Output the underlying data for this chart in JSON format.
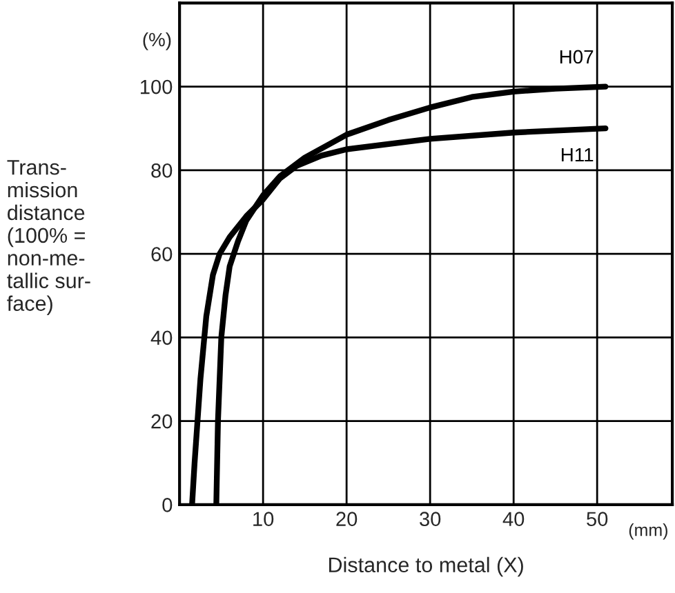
{
  "chart_data": {
    "type": "line",
    "xlabel": "Distance to metal (X)",
    "ylabel": "Trans-\nmission\ndistance\n(100% =\nnon-me-\ntallic sur-\nface)",
    "annotations": [
      "(%)",
      "(mm)"
    ],
    "xlim": [
      0,
      59
    ],
    "ylim": [
      0,
      120
    ],
    "xticks": [
      {
        "value": 0,
        "label": null
      },
      10,
      20,
      30,
      40,
      50
    ],
    "yticks": [
      0,
      20,
      40,
      60,
      80,
      100
    ],
    "grid": true,
    "legend": false,
    "marker": "none",
    "line_style": "solid",
    "series": [
      {
        "name": "H07",
        "color": "#000000",
        "x": [
          4.4,
          4.6,
          5,
          5.5,
          6,
          7,
          8,
          10,
          12,
          15,
          20,
          25,
          30,
          35,
          40,
          45,
          51
        ],
        "values": [
          0,
          20,
          40,
          50,
          57,
          63,
          68,
          74,
          78.5,
          83,
          88.5,
          92,
          95,
          97.5,
          98.8,
          99.5,
          100
        ]
      },
      {
        "name": "H11",
        "color": "#000000",
        "x": [
          1.5,
          1.8,
          2.5,
          3.2,
          4,
          4.8,
          6,
          8,
          10,
          12,
          14,
          17,
          20,
          30,
          40,
          51
        ],
        "values": [
          0,
          10,
          30,
          45,
          55,
          60,
          64,
          69,
          73,
          78,
          81,
          83.5,
          85,
          87.5,
          89,
          90
        ]
      }
    ]
  }
}
